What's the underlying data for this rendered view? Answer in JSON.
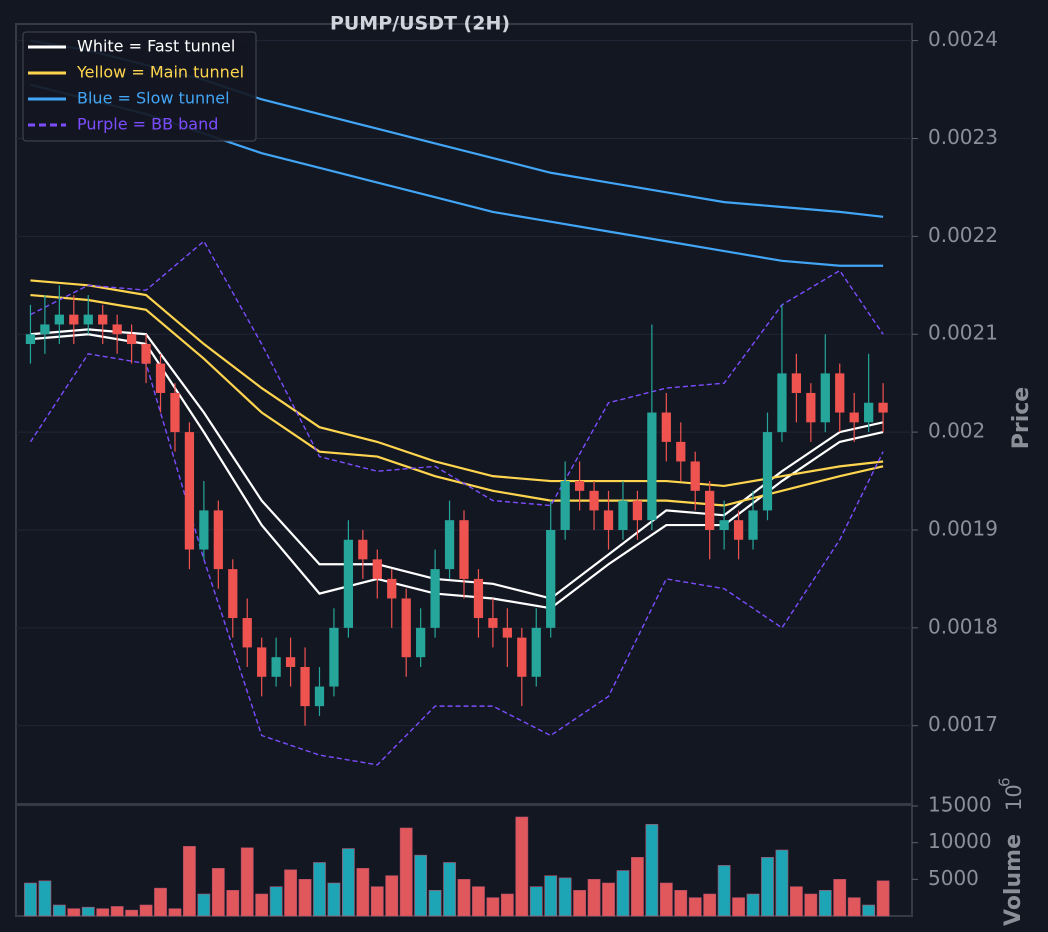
{
  "chart_data": [
    {
      "type": "candlestick",
      "title": "PUMP/USDT (2H)",
      "y_label": "Price",
      "legend": "upper left",
      "grid": true,
      "up_color": "#26a69a",
      "down_color": "#ef5350",
      "ylim": [
        0.00162,
        0.002417
      ],
      "yticks": [
        0.0017,
        0.0018,
        0.0019,
        0.002,
        0.0021,
        0.0022,
        0.0023,
        0.0024
      ],
      "open": [
        0.00209,
        0.0021,
        0.00211,
        0.00212,
        0.00211,
        0.00212,
        0.00211,
        0.0021,
        0.00209,
        0.00207,
        0.00204,
        0.002,
        0.00188,
        0.00192,
        0.00186,
        0.00181,
        0.00178,
        0.00175,
        0.00177,
        0.00176,
        0.00172,
        0.00174,
        0.0018,
        0.00189,
        0.00187,
        0.00185,
        0.00183,
        0.00177,
        0.0018,
        0.00186,
        0.00191,
        0.00185,
        0.00181,
        0.0018,
        0.00179,
        0.00175,
        0.0018,
        0.0019,
        0.00195,
        0.00194,
        0.00192,
        0.0019,
        0.00193,
        0.00191,
        0.00202,
        0.00199,
        0.00197,
        0.00194,
        0.0019,
        0.00191,
        0.00189,
        0.00192,
        0.002,
        0.00206,
        0.00204,
        0.00201,
        0.00206,
        0.00202,
        0.00201,
        0.00203
      ],
      "high": [
        0.00213,
        0.00214,
        0.00215,
        0.00214,
        0.00214,
        0.00213,
        0.00212,
        0.00211,
        0.0021,
        0.00208,
        0.00205,
        0.00201,
        0.00195,
        0.00193,
        0.00187,
        0.00183,
        0.00179,
        0.00179,
        0.00179,
        0.00178,
        0.00176,
        0.00182,
        0.00191,
        0.0019,
        0.00188,
        0.00186,
        0.00184,
        0.00182,
        0.00188,
        0.00193,
        0.00192,
        0.00186,
        0.00183,
        0.00182,
        0.0018,
        0.00182,
        0.00193,
        0.00197,
        0.00197,
        0.00195,
        0.00194,
        0.00195,
        0.00194,
        0.00211,
        0.00204,
        0.00201,
        0.00198,
        0.00195,
        0.00193,
        0.00192,
        0.00194,
        0.00202,
        0.00213,
        0.00208,
        0.00205,
        0.0021,
        0.00207,
        0.00204,
        0.00208,
        0.00205
      ],
      "low": [
        0.00207,
        0.00208,
        0.00209,
        0.00209,
        0.0021,
        0.00209,
        0.00208,
        0.00207,
        0.00205,
        0.00202,
        0.00198,
        0.00186,
        0.00187,
        0.00184,
        0.00179,
        0.00176,
        0.00173,
        0.00174,
        0.00174,
        0.0017,
        0.00171,
        0.00173,
        0.00179,
        0.00185,
        0.00183,
        0.0018,
        0.00175,
        0.00176,
        0.00179,
        0.00185,
        0.00183,
        0.00179,
        0.00178,
        0.00176,
        0.00172,
        0.00174,
        0.00179,
        0.00189,
        0.00192,
        0.0019,
        0.00188,
        0.00189,
        0.00189,
        0.0019,
        0.00197,
        0.00195,
        0.00192,
        0.00187,
        0.00188,
        0.00187,
        0.00188,
        0.00191,
        0.00199,
        0.00201,
        0.00199,
        0.002,
        0.002,
        0.00199,
        0.002,
        0.002
      ],
      "close": [
        0.0021,
        0.00211,
        0.00212,
        0.00211,
        0.00212,
        0.00211,
        0.0021,
        0.00209,
        0.00207,
        0.00204,
        0.002,
        0.00188,
        0.00192,
        0.00186,
        0.00181,
        0.00178,
        0.00175,
        0.00177,
        0.00176,
        0.00172,
        0.00174,
        0.0018,
        0.00189,
        0.00187,
        0.00185,
        0.00183,
        0.00177,
        0.0018,
        0.00186,
        0.00191,
        0.00185,
        0.00181,
        0.0018,
        0.00179,
        0.00175,
        0.0018,
        0.0019,
        0.00195,
        0.00194,
        0.00192,
        0.0019,
        0.00193,
        0.00191,
        0.00202,
        0.00199,
        0.00197,
        0.00194,
        0.0019,
        0.00191,
        0.00189,
        0.00192,
        0.002,
        0.00206,
        0.00204,
        0.00201,
        0.00206,
        0.00202,
        0.00201,
        0.00203,
        0.00202
      ],
      "line_x": [
        0,
        4,
        8,
        12,
        16,
        20,
        24,
        28,
        32,
        36,
        40,
        44,
        48,
        52,
        56,
        59
      ],
      "bands": [
        {
          "name": "White = Fast tunnel",
          "color": "#ffffff",
          "dashed": false,
          "upper": [
            0.0021,
            0.002105,
            0.0021,
            0.00202,
            0.00193,
            0.001865,
            0.001865,
            0.00185,
            0.001845,
            0.00183,
            0.001875,
            0.00192,
            0.001915,
            0.00196,
            0.002,
            0.00201
          ],
          "lower": [
            0.002095,
            0.0021,
            0.00209,
            0.002,
            0.001905,
            0.001835,
            0.00185,
            0.001835,
            0.00183,
            0.00182,
            0.001865,
            0.001905,
            0.001905,
            0.00195,
            0.00199,
            0.002
          ]
        },
        {
          "name": "Yellow = Main tunnel",
          "color": "#ffd54f",
          "dashed": false,
          "upper": [
            0.002155,
            0.00215,
            0.00214,
            0.00209,
            0.002045,
            0.002005,
            0.00199,
            0.00197,
            0.001955,
            0.00195,
            0.00195,
            0.00195,
            0.001945,
            0.001955,
            0.001965,
            0.00197
          ],
          "lower": [
            0.00214,
            0.002135,
            0.002125,
            0.002075,
            0.00202,
            0.00198,
            0.001975,
            0.001955,
            0.00194,
            0.00193,
            0.00193,
            0.00193,
            0.001925,
            0.00194,
            0.001955,
            0.001965
          ]
        },
        {
          "name": "Blue = Slow tunnel",
          "color": "#42a5f5",
          "dashed": false,
          "upper": [
            0.0024,
            0.00239,
            0.002375,
            0.00236,
            0.00234,
            0.002325,
            0.00231,
            0.002295,
            0.00228,
            0.002265,
            0.002255,
            0.002245,
            0.002235,
            0.00223,
            0.002225,
            0.00222
          ],
          "lower": [
            0.002355,
            0.00234,
            0.002325,
            0.002305,
            0.002285,
            0.00227,
            0.002255,
            0.00224,
            0.002225,
            0.002215,
            0.002205,
            0.002195,
            0.002185,
            0.002175,
            0.00217,
            0.00217
          ]
        },
        {
          "name": "Purple = BB band",
          "color": "#7c4dff",
          "dashed": true,
          "upper": [
            0.00212,
            0.00215,
            0.002145,
            0.002195,
            0.00209,
            0.001975,
            0.00196,
            0.001965,
            0.00193,
            0.001925,
            0.00203,
            0.002045,
            0.00205,
            0.00213,
            0.002165,
            0.0021
          ],
          "lower": [
            0.00199,
            0.00208,
            0.00207,
            0.00187,
            0.00169,
            0.00167,
            0.00166,
            0.00172,
            0.00172,
            0.00169,
            0.00173,
            0.00185,
            0.00184,
            0.0018,
            0.00189,
            0.00198
          ]
        }
      ]
    },
    {
      "type": "bar",
      "y_label": "Volume",
      "offset_text": {
        "base": "10",
        "exponent": "6"
      },
      "ylim": [
        0,
        15000
      ],
      "yticks": [
        5000,
        10000,
        15000
      ],
      "values": [
        4500,
        4800,
        1500,
        1000,
        1200,
        1000,
        1300,
        800,
        1500,
        3800,
        1000,
        9500,
        3000,
        6500,
        3500,
        9300,
        3000,
        4000,
        6300,
        5000,
        7300,
        4500,
        9200,
        6500,
        4000,
        5500,
        12000,
        8300,
        3500,
        7300,
        5000,
        4000,
        2500,
        3000,
        13500,
        4000,
        5500,
        5200,
        3500,
        5000,
        4500,
        6200,
        8000,
        12500,
        4500,
        3500,
        2500,
        3000,
        6900,
        2500,
        3000,
        8000,
        9000,
        4000,
        3000,
        3500,
        5000,
        2500,
        1500,
        4800
      ]
    }
  ]
}
